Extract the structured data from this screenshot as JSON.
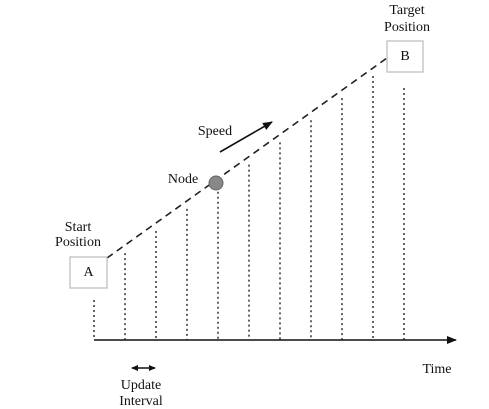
{
  "diagram": {
    "start_box": "A",
    "target_box": "B",
    "start_label": [
      "Start",
      "Position"
    ],
    "target_label": [
      "Target",
      "Position"
    ],
    "node_label": "Node",
    "speed_label": "Speed",
    "axis_label": "Time",
    "interval_label": [
      "Update",
      "Interval"
    ]
  }
}
